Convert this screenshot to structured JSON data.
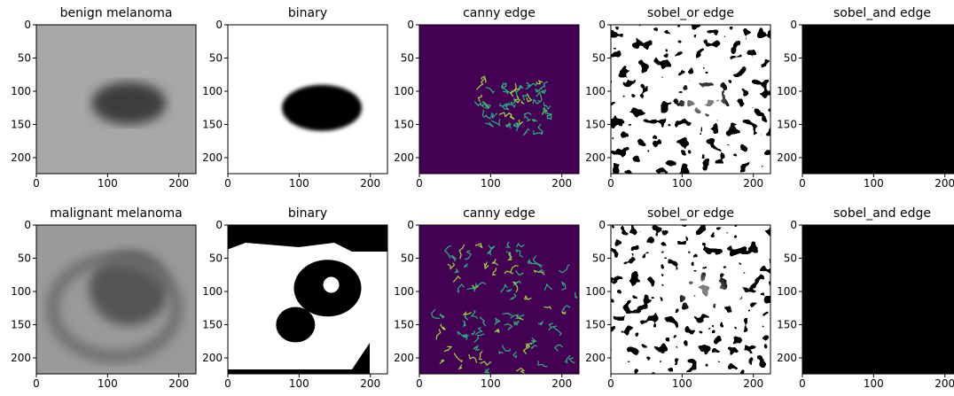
{
  "panels": [
    {
      "title": "benign melanoma"
    },
    {
      "title": "binary"
    },
    {
      "title": "canny edge"
    },
    {
      "title": "sobel_or edge"
    },
    {
      "title": "sobel_and edge"
    },
    {
      "title": "malignant melanoma"
    },
    {
      "title": "binary"
    },
    {
      "title": "canny edge"
    },
    {
      "title": "sobel_or edge"
    },
    {
      "title": "sobel_and edge"
    }
  ],
  "xlim": [
    0,
    224
  ],
  "ylim": [
    0,
    224
  ],
  "xticks": [
    0,
    100,
    200
  ],
  "yticks": [
    0,
    50,
    100,
    150,
    200
  ]
}
